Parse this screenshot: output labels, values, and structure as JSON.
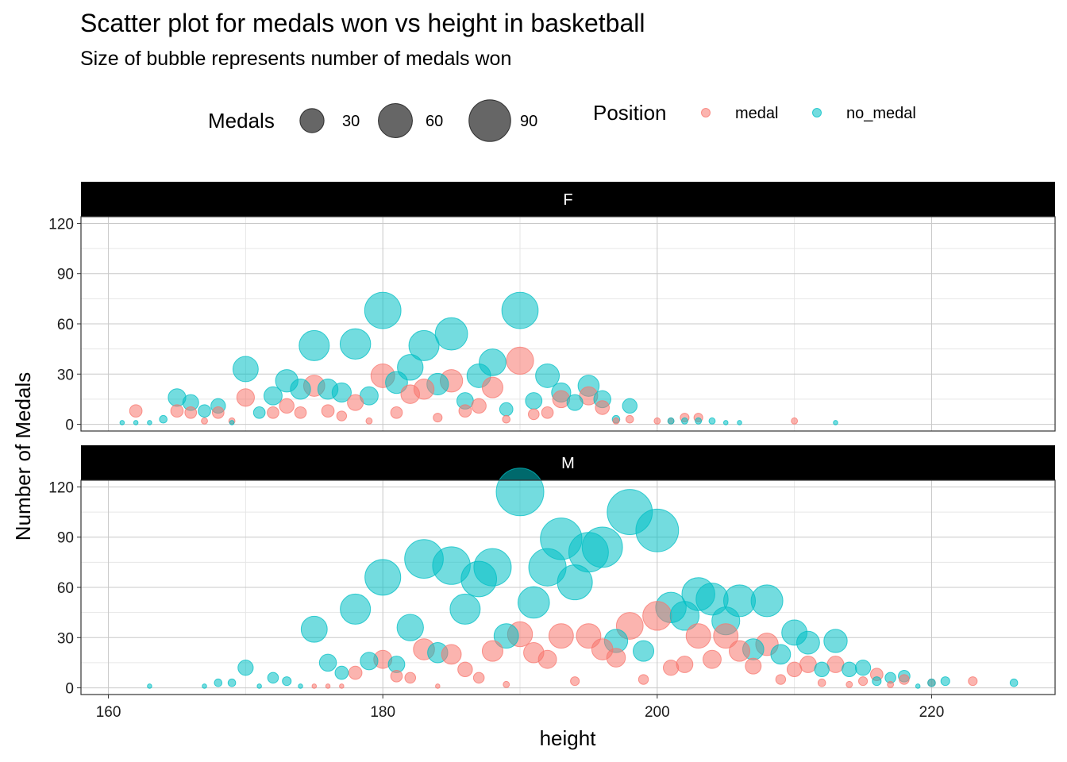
{
  "chart_data": {
    "type": "scatter",
    "title": "Scatter plot for medals won vs height in basketball",
    "subtitle": "Size of bubble represents number of medals won",
    "xlabel": "height",
    "ylabel": "Number of Medals",
    "xlim": [
      158,
      229
    ],
    "ylim": [
      -4,
      124
    ],
    "xticks": [
      160,
      180,
      200,
      220
    ],
    "yticks": [
      0,
      30,
      60,
      90,
      120
    ],
    "grid": true,
    "legend": {
      "position": "top",
      "size_title": "Medals",
      "size_breaks": [
        30,
        60,
        90
      ],
      "color_title": "Position",
      "color_entries": [
        "medal",
        "no_medal"
      ]
    },
    "colors": {
      "medal": "#F8766D",
      "no_medal": "#00BFC4"
    },
    "facets": [
      {
        "label": "F",
        "series": [
          {
            "name": "medal",
            "points": [
              [
                162,
                8
              ],
              [
                165,
                8
              ],
              [
                166,
                7
              ],
              [
                167,
                2
              ],
              [
                168,
                7
              ],
              [
                169,
                2
              ],
              [
                170,
                16
              ],
              [
                172,
                7
              ],
              [
                173,
                11
              ],
              [
                174,
                7
              ],
              [
                175,
                23
              ],
              [
                176,
                8
              ],
              [
                177,
                5
              ],
              [
                178,
                13
              ],
              [
                179,
                2
              ],
              [
                180,
                29
              ],
              [
                181,
                7
              ],
              [
                182,
                18
              ],
              [
                183,
                21
              ],
              [
                184,
                4
              ],
              [
                185,
                26
              ],
              [
                186,
                8
              ],
              [
                187,
                11
              ],
              [
                188,
                22
              ],
              [
                189,
                3
              ],
              [
                190,
                38
              ],
              [
                191,
                6
              ],
              [
                192,
                7
              ],
              [
                193,
                15
              ],
              [
                195,
                17
              ],
              [
                196,
                10
              ],
              [
                197,
                2
              ],
              [
                198,
                3
              ],
              [
                200,
                2
              ],
              [
                201,
                2
              ],
              [
                202,
                4
              ],
              [
                203,
                4
              ],
              [
                210,
                2
              ]
            ]
          },
          {
            "name": "no_medal",
            "points": [
              [
                161,
                1
              ],
              [
                162,
                1
              ],
              [
                163,
                1
              ],
              [
                164,
                3
              ],
              [
                165,
                16
              ],
              [
                166,
                13
              ],
              [
                167,
                8
              ],
              [
                168,
                11
              ],
              [
                169,
                1
              ],
              [
                170,
                33
              ],
              [
                171,
                7
              ],
              [
                172,
                17
              ],
              [
                173,
                26
              ],
              [
                174,
                21
              ],
              [
                175,
                47
              ],
              [
                176,
                21
              ],
              [
                177,
                19
              ],
              [
                178,
                48
              ],
              [
                179,
                17
              ],
              [
                180,
                68
              ],
              [
                181,
                25
              ],
              [
                182,
                34
              ],
              [
                183,
                47
              ],
              [
                184,
                24
              ],
              [
                185,
                54
              ],
              [
                186,
                14
              ],
              [
                187,
                29
              ],
              [
                188,
                37
              ],
              [
                189,
                9
              ],
              [
                190,
                68
              ],
              [
                191,
                14
              ],
              [
                192,
                29
              ],
              [
                193,
                19
              ],
              [
                194,
                13
              ],
              [
                195,
                23
              ],
              [
                196,
                15
              ],
              [
                197,
                3
              ],
              [
                198,
                11
              ],
              [
                201,
                2
              ],
              [
                202,
                2
              ],
              [
                203,
                2
              ],
              [
                204,
                2
              ],
              [
                205,
                1
              ],
              [
                206,
                1
              ],
              [
                213,
                1
              ]
            ]
          }
        ]
      },
      {
        "label": "M",
        "series": [
          {
            "name": "medal",
            "points": [
              [
                175,
                1
              ],
              [
                176,
                1
              ],
              [
                177,
                1
              ],
              [
                178,
                9
              ],
              [
                180,
                17
              ],
              [
                181,
                7
              ],
              [
                182,
                6
              ],
              [
                183,
                23
              ],
              [
                184,
                1
              ],
              [
                185,
                20
              ],
              [
                186,
                11
              ],
              [
                187,
                6
              ],
              [
                188,
                22
              ],
              [
                189,
                2
              ],
              [
                190,
                32
              ],
              [
                191,
                21
              ],
              [
                192,
                17
              ],
              [
                193,
                31
              ],
              [
                194,
                4
              ],
              [
                195,
                31
              ],
              [
                196,
                23
              ],
              [
                197,
                18
              ],
              [
                198,
                37
              ],
              [
                199,
                5
              ],
              [
                200,
                43
              ],
              [
                201,
                12
              ],
              [
                202,
                14
              ],
              [
                203,
                31
              ],
              [
                204,
                17
              ],
              [
                205,
                31
              ],
              [
                206,
                22
              ],
              [
                207,
                13
              ],
              [
                208,
                26
              ],
              [
                209,
                5
              ],
              [
                210,
                11
              ],
              [
                211,
                14
              ],
              [
                212,
                3
              ],
              [
                213,
                14
              ],
              [
                214,
                2
              ],
              [
                215,
                4
              ],
              [
                216,
                8
              ],
              [
                217,
                2
              ],
              [
                218,
                5
              ],
              [
                220,
                3
              ],
              [
                223,
                4
              ]
            ]
          },
          {
            "name": "no_medal",
            "points": [
              [
                163,
                1
              ],
              [
                167,
                1
              ],
              [
                168,
                3
              ],
              [
                169,
                3
              ],
              [
                170,
                12
              ],
              [
                171,
                1
              ],
              [
                172,
                6
              ],
              [
                173,
                4
              ],
              [
                174,
                1
              ],
              [
                175,
                35
              ],
              [
                176,
                15
              ],
              [
                177,
                9
              ],
              [
                178,
                47
              ],
              [
                179,
                16
              ],
              [
                180,
                66
              ],
              [
                181,
                14
              ],
              [
                182,
                36
              ],
              [
                183,
                77
              ],
              [
                184,
                21
              ],
              [
                185,
                73
              ],
              [
                186,
                47
              ],
              [
                187,
                65
              ],
              [
                188,
                72
              ],
              [
                189,
                31
              ],
              [
                190,
                117
              ],
              [
                191,
                51
              ],
              [
                192,
                72
              ],
              [
                193,
                89
              ],
              [
                194,
                63
              ],
              [
                195,
                81
              ],
              [
                196,
                84
              ],
              [
                197,
                28
              ],
              [
                198,
                105
              ],
              [
                199,
                22
              ],
              [
                200,
                94
              ],
              [
                201,
                48
              ],
              [
                202,
                43
              ],
              [
                203,
                56
              ],
              [
                204,
                53
              ],
              [
                205,
                40
              ],
              [
                206,
                52
              ],
              [
                207,
                23
              ],
              [
                208,
                52
              ],
              [
                209,
                20
              ],
              [
                210,
                33
              ],
              [
                211,
                27
              ],
              [
                212,
                11
              ],
              [
                213,
                28
              ],
              [
                214,
                11
              ],
              [
                215,
                12
              ],
              [
                216,
                4
              ],
              [
                217,
                6
              ],
              [
                218,
                7
              ],
              [
                219,
                1
              ],
              [
                220,
                3
              ],
              [
                221,
                4
              ],
              [
                226,
                3
              ]
            ]
          }
        ]
      }
    ]
  }
}
